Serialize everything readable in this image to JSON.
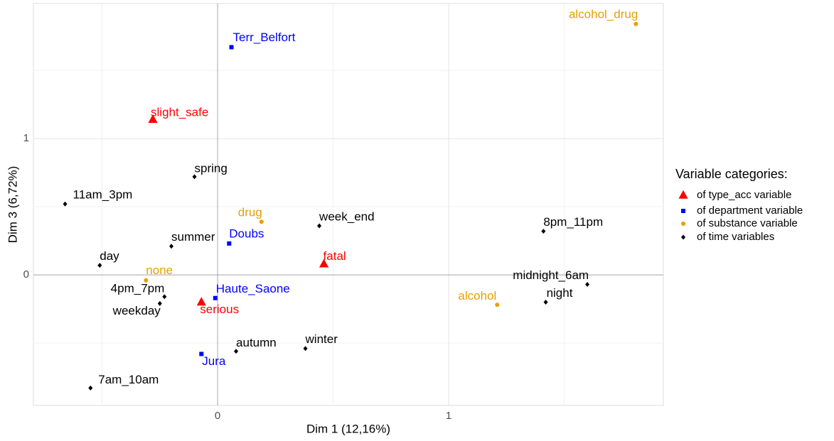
{
  "chart_data": {
    "type": "scatter",
    "x_label": "Dim 1 (12,16%)",
    "y_label": "Dim 3 (6,72%)",
    "xlim": [
      -0.797,
      1.929
    ],
    "ylim": [
      -0.958,
      1.99
    ],
    "xticks": [
      0,
      1
    ],
    "yticks": [
      0,
      1
    ],
    "minor_xticks": [
      -0.5,
      0.5,
      1.5
    ],
    "minor_yticks": [
      -0.5,
      0.5,
      1.5
    ],
    "grid": true,
    "legend_title": "Variable categories:",
    "legend_position": "right",
    "series": [
      {
        "name": "of type_acc variable",
        "color": "#ff0000",
        "marker": "triangle",
        "labels": [
          "slight_safe",
          "fatal",
          "serious"
        ],
        "x": [
          -0.28,
          0.46,
          -0.07
        ],
        "y": [
          1.14,
          0.08,
          -0.2
        ]
      },
      {
        "name": "of department variable",
        "color": "#0000ff",
        "marker": "square",
        "labels": [
          "Terr_Belfort",
          "Doubs",
          "Haute_Saone",
          "Jura"
        ],
        "x": [
          0.06,
          0.05,
          -0.01,
          -0.07
        ],
        "y": [
          1.67,
          0.23,
          -0.17,
          -0.58
        ]
      },
      {
        "name": "of substance variable",
        "color": "#e69f00",
        "marker": "circle",
        "labels": [
          "alcohol_drug",
          "drug",
          "none",
          "alcohol"
        ],
        "x": [
          1.81,
          0.19,
          -0.31,
          1.21
        ],
        "y": [
          1.84,
          0.39,
          -0.04,
          -0.22
        ]
      },
      {
        "name": "of time variables",
        "color": "#000000",
        "marker": "diamond",
        "labels": [
          "11am_3pm",
          "spring",
          "summer",
          "day",
          "4pm_7pm",
          "weekday",
          "7am_10am",
          "autumn",
          "winter",
          "week_end",
          "8pm_11pm",
          "midnight_6am",
          "night"
        ],
        "x": [
          -0.66,
          -0.1,
          -0.2,
          -0.51,
          -0.23,
          -0.25,
          -0.55,
          0.08,
          0.38,
          0.44,
          1.41,
          1.6,
          1.42
        ],
        "y": [
          0.52,
          0.72,
          0.21,
          0.07,
          -0.16,
          -0.21,
          -0.83,
          -0.56,
          -0.54,
          0.36,
          0.32,
          -0.07,
          -0.2
        ]
      }
    ]
  }
}
